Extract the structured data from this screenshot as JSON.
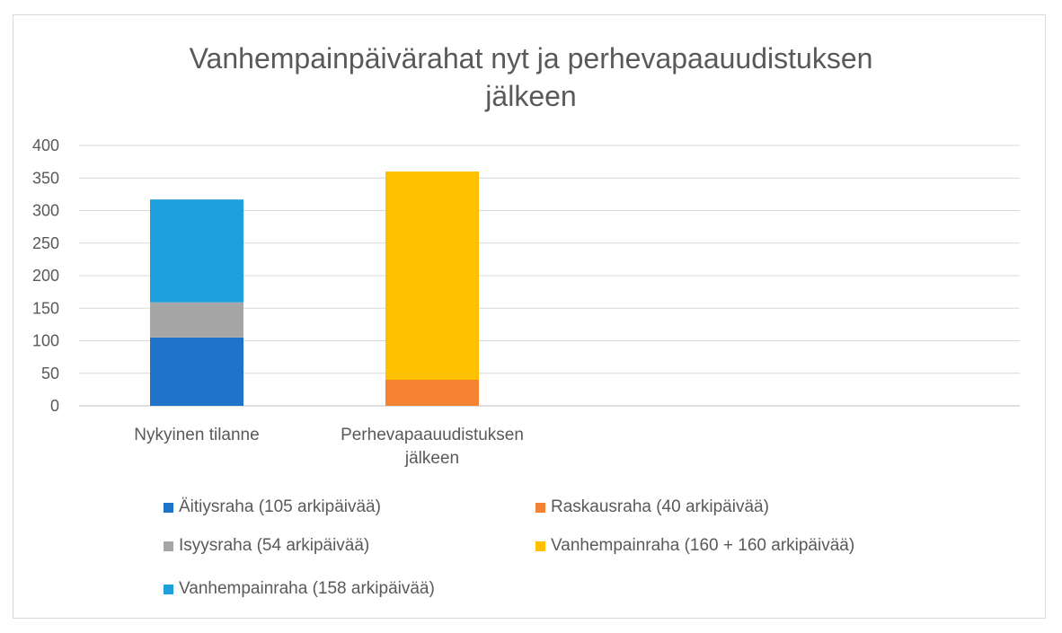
{
  "chart_data": {
    "type": "bar",
    "stacked": true,
    "title_lines": [
      "Vanhempainpäivärahat nyt ja perhevapaauudistuksen",
      "jälkeen"
    ],
    "categories": [
      [
        "Nykyinen tilanne"
      ],
      [
        "Perhevapaauudistuksen",
        "jälkeen"
      ]
    ],
    "ylim": [
      0,
      400
    ],
    "yticks": [
      0,
      50,
      100,
      150,
      200,
      250,
      300,
      350,
      400
    ],
    "grid": true,
    "legend_position": "bottom",
    "series": [
      {
        "name": "Äitiysraha (105 arkipäivää)",
        "color": "#1f74c9",
        "values": [
          105,
          0
        ]
      },
      {
        "name": "Raskausraha (40 arkipäivää)",
        "color": "#f58232",
        "values": [
          0,
          40
        ]
      },
      {
        "name": "Isyysraha (54 arkipäivää)",
        "color": "#a6a6a6",
        "values": [
          54,
          0
        ]
      },
      {
        "name": "Vanhempainraha (160 + 160 arkipäivää)",
        "color": "#ffc000",
        "values": [
          0,
          320
        ]
      },
      {
        "name": "Vanhempainraha (158 arkipäivää)",
        "color": "#1ea0dd",
        "values": [
          158,
          0
        ]
      }
    ],
    "stack_order": [
      0,
      2,
      4,
      1,
      3
    ],
    "legend_order": [
      0,
      1,
      2,
      3,
      4
    ]
  }
}
